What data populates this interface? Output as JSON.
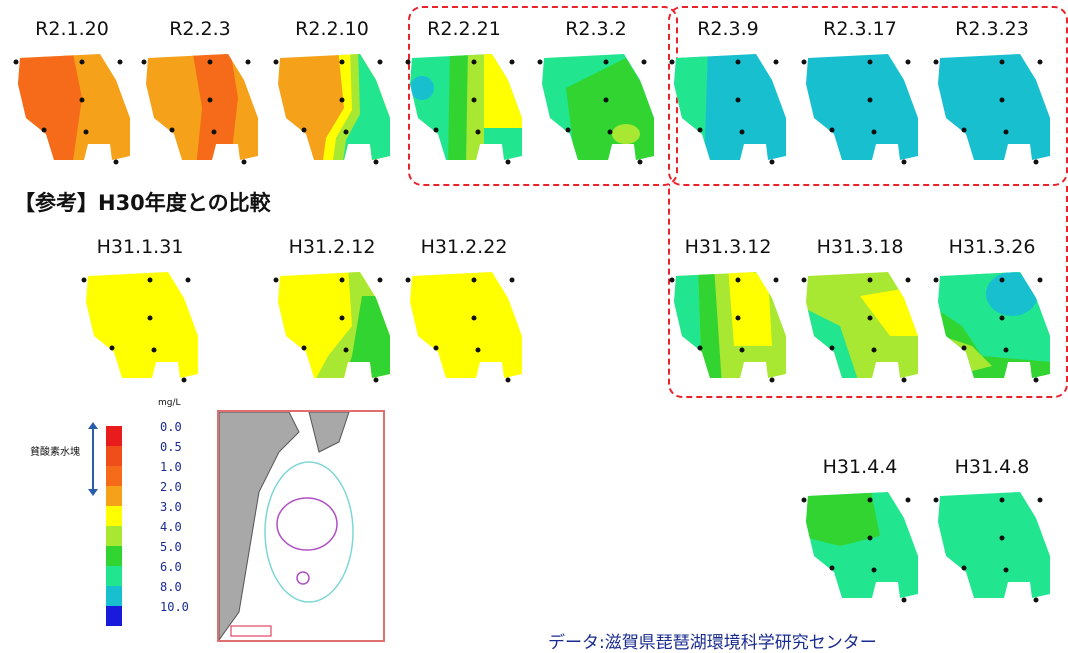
{
  "panels": {
    "p1": {
      "label": "R2.1.20"
    },
    "p2": {
      "label": "R2.2.3"
    },
    "p3": {
      "label": "R2.2.10"
    },
    "p4": {
      "label": "R2.2.21"
    },
    "p5": {
      "label": "R2.3.2"
    },
    "p6": {
      "label": "R2.3.9"
    },
    "p7": {
      "label": "R2.3.17"
    },
    "p8": {
      "label": "R2.3.23"
    },
    "p9": {
      "label": "H31.1.31"
    },
    "p10": {
      "label": "H31.2.12"
    },
    "p11": {
      "label": "H31.2.22"
    },
    "p12": {
      "label": "H31.3.12"
    },
    "p13": {
      "label": "H31.3.18"
    },
    "p14": {
      "label": "H31.3.26"
    },
    "p15": {
      "label": "H31.4.4"
    },
    "p16": {
      "label": "H31.4.8"
    }
  },
  "reference_title": "【参考】H30年度との比較",
  "legend": {
    "unit": "mg/L",
    "hypoxia_label": "貧酸素水塊",
    "values": [
      "0.0",
      "0.5",
      "1.0",
      "2.0",
      "3.0",
      "4.0",
      "5.0",
      "6.0",
      "8.0",
      "10.0"
    ],
    "colors": [
      "#e81c1c",
      "#ef4e1a",
      "#f56b1a",
      "#f5a21a",
      "#ffff00",
      "#a8e832",
      "#31d431",
      "#22e68f",
      "#17bfcf",
      "#1a1adc"
    ]
  },
  "footer": "データ:滋賀県琵琶湖環境科学研究センター"
}
